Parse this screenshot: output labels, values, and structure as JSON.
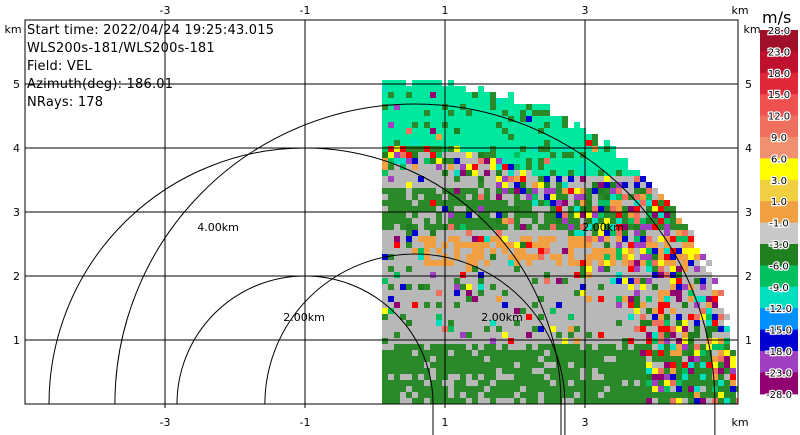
{
  "info": {
    "start_time": "Start time: 2022/04/24 19:25:43.015",
    "instrument": "WLS200s-181/WLS200s-181",
    "field": "Field: VEL",
    "azimuth": "Azimuth(deg): 186.01",
    "nrays": "NRays: 178"
  },
  "axes": {
    "x_ticks": [
      "-3",
      "-1",
      "1",
      "3"
    ],
    "y_ticks": [
      "1",
      "2",
      "3",
      "4",
      "5"
    ],
    "unit": "km"
  },
  "ring_labels": [
    "4.00km",
    "2.00km",
    "2.00km",
    "2.00km"
  ],
  "colorbar": {
    "unit": "m/s",
    "labels": [
      "28.0",
      "23.0",
      "18.0",
      "15.0",
      "12.0",
      "9.0",
      "6.0",
      "3.0",
      "1.0",
      "-1.0",
      "-3.0",
      "-6.0",
      "-9.0",
      "-12.0",
      "-15.0",
      "-18.0",
      "-23.0",
      "-28.0"
    ],
    "colors": [
      "#a0102a",
      "#c01030",
      "#e02838",
      "#f05050",
      "#f07060",
      "#f09070",
      "#ffff00",
      "#f0d040",
      "#f0a040",
      "#c8c8c8",
      "#208020",
      "#00c060",
      "#00e0c0",
      "#0090ff",
      "#0000d0",
      "#a040c0",
      "#900070"
    ]
  },
  "colors": {
    "gray": "#b8b8b8",
    "green": "#2a8a2a",
    "teal": "#00e8a0",
    "orange": "#f0a040",
    "speckle": [
      "#900070",
      "#ff0000",
      "#ffff00",
      "#0000d0",
      "#00c060",
      "#a040c0",
      "#f0a040",
      "#00e0c0",
      "#f07060",
      "#208020"
    ]
  }
}
